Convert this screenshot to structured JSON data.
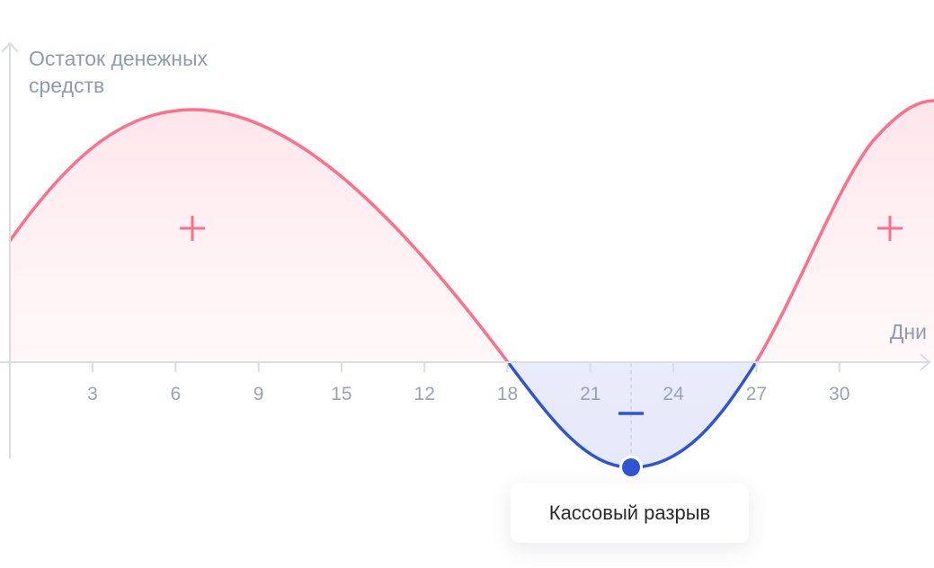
{
  "chart_data": {
    "type": "line",
    "ylabel": "Остаток денежных средств",
    "xlabel": "Дни",
    "x_tick_labels": [
      "3",
      "6",
      "9",
      "15",
      "12",
      "18",
      "21",
      "24",
      "27",
      "30"
    ],
    "annotations": {
      "positive_sign": "+",
      "negative_sign": "−",
      "callout": "Кассовый разрыв"
    },
    "colors": {
      "positive": "#ff6f8a",
      "negative": "#2f55d4",
      "axis": "#d9dce3",
      "label": "#8d9bb0"
    },
    "grid": false
  }
}
